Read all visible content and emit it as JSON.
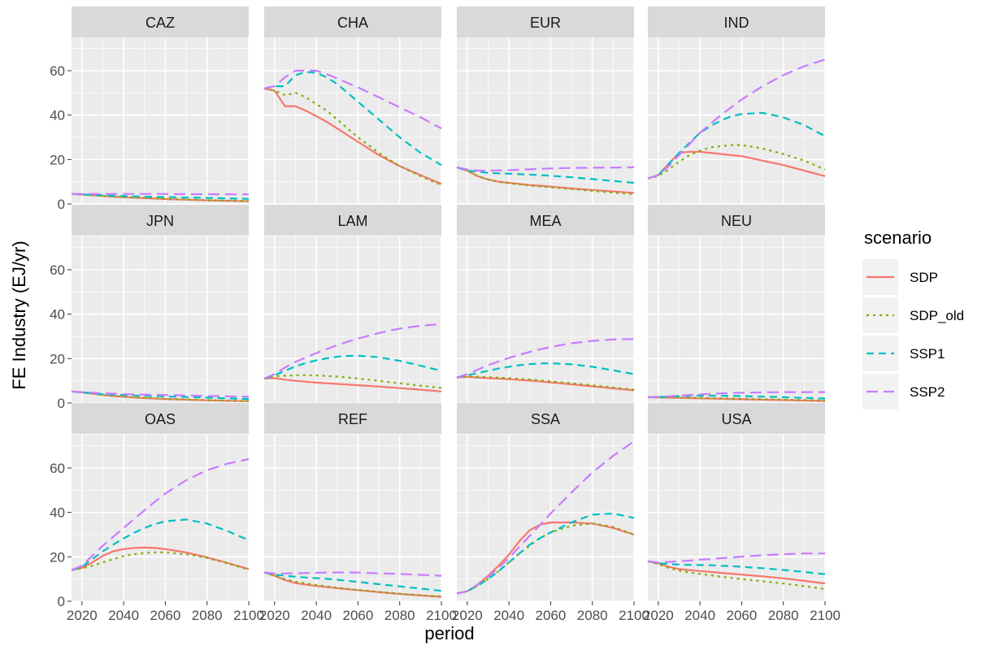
{
  "chart_data": {
    "type": "line",
    "xlabel": "period",
    "ylabel": "FE Industry (EJ/yr)",
    "xlim": [
      2015,
      2100
    ],
    "ylim": [
      0,
      75
    ],
    "x_ticks": [
      2020,
      2040,
      2060,
      2080,
      2100
    ],
    "y_ticks": [
      0,
      20,
      40,
      60
    ],
    "grid": true,
    "legend_title": "scenario",
    "legend_position": "right",
    "colors": {
      "SDP": "#F8766D",
      "SDP_old": "#7CAE00",
      "SSP1": "#00BFC4",
      "SSP2": "#C77CFF"
    },
    "scenarios": [
      {
        "name": "SDP",
        "color": "#F8766D",
        "dash": "none"
      },
      {
        "name": "SDP_old",
        "color": "#7CAE00",
        "dash": "3,5"
      },
      {
        "name": "SSP1",
        "color": "#00BFC4",
        "dash": "9,6"
      },
      {
        "name": "SSP2",
        "color": "#C77CFF",
        "dash": "14,7"
      }
    ],
    "x": [
      2015,
      2020,
      2025,
      2030,
      2035,
      2040,
      2045,
      2050,
      2055,
      2060,
      2070,
      2080,
      2090,
      2100
    ],
    "panels": [
      {
        "region": "CAZ",
        "series": {
          "SDP": [
            4.5,
            4.2,
            3.9,
            3.6,
            3.3,
            3.0,
            2.8,
            2.6,
            2.4,
            2.2,
            1.9,
            1.6,
            1.4,
            1.2
          ],
          "SDP_old": [
            4.5,
            4.2,
            3.9,
            3.6,
            3.4,
            3.1,
            2.9,
            2.7,
            2.5,
            2.3,
            2.0,
            1.7,
            1.5,
            1.3
          ],
          "SSP1": [
            4.5,
            4.3,
            4.1,
            3.9,
            3.7,
            3.5,
            3.4,
            3.3,
            3.2,
            3.1,
            2.9,
            2.7,
            2.5,
            2.3
          ],
          "SSP2": [
            4.5,
            4.5,
            4.5,
            4.5,
            4.5,
            4.5,
            4.5,
            4.5,
            4.5,
            4.5,
            4.4,
            4.4,
            4.3,
            4.3
          ]
        }
      },
      {
        "region": "CHA",
        "series": {
          "SDP": [
            52,
            51,
            44,
            44,
            42,
            39.5,
            37,
            34,
            31,
            28,
            22,
            17,
            13,
            9
          ],
          "SDP_old": [
            52,
            51,
            49,
            50,
            48,
            45,
            42,
            38,
            34,
            30,
            23,
            17,
            12.5,
            8.5
          ],
          "SSP1": [
            52,
            53,
            53,
            58,
            59.5,
            59,
            57,
            54,
            50,
            46,
            38,
            30,
            23,
            17.5
          ],
          "SSP2": [
            52,
            53,
            57,
            60,
            60,
            60,
            58.5,
            56.5,
            54.5,
            52.5,
            48,
            43.5,
            39,
            34
          ]
        }
      },
      {
        "region": "EUR",
        "series": {
          "SDP": [
            16.5,
            15,
            12.5,
            11,
            10,
            9.5,
            9,
            8.5,
            8.2,
            7.8,
            7,
            6.3,
            5.6,
            5
          ],
          "SDP_old": [
            16.5,
            15,
            12.5,
            11,
            10,
            9.3,
            8.8,
            8.3,
            7.9,
            7.5,
            6.7,
            5.9,
            5.1,
            4.4
          ],
          "SSP1": [
            16.5,
            15,
            14.5,
            14,
            13.8,
            13.6,
            13.4,
            13.2,
            13,
            12.7,
            12,
            11.2,
            10.3,
            9.5
          ],
          "SSP2": [
            16.5,
            15.5,
            15,
            15,
            15.1,
            15.2,
            15.4,
            15.6,
            15.8,
            16,
            16.2,
            16.3,
            16.4,
            16.5
          ]
        }
      },
      {
        "region": "IND",
        "series": {
          "SDP": [
            11.5,
            13,
            18,
            23,
            23.5,
            23.5,
            23,
            22.5,
            22,
            21.5,
            19.5,
            17.5,
            15,
            12.5
          ],
          "SDP_old": [
            11.5,
            12.5,
            15.5,
            19,
            22,
            24,
            25.5,
            26,
            26.5,
            26.5,
            25,
            22.5,
            19.5,
            15.5
          ],
          "SSP1": [
            11.5,
            13,
            18,
            23,
            27.5,
            32,
            35,
            37.5,
            39.5,
            40.5,
            41,
            39,
            35.5,
            30.5
          ],
          "SSP2": [
            11.5,
            13,
            17,
            22,
            27,
            32,
            36,
            40,
            43.5,
            47,
            53,
            58,
            62,
            65
          ]
        }
      },
      {
        "region": "JPN",
        "series": {
          "SDP": [
            5.2,
            4.8,
            4.2,
            3.6,
            3.2,
            2.8,
            2.5,
            2.2,
            2.0,
            1.8,
            1.5,
            1.2,
            1.0,
            0.8
          ],
          "SDP_old": [
            5.2,
            4.8,
            4.2,
            3.6,
            3.2,
            2.8,
            2.5,
            2.3,
            2.1,
            1.9,
            1.6,
            1.3,
            1.1,
            0.9
          ],
          "SSP1": [
            5.2,
            4.8,
            4.4,
            4.0,
            3.8,
            3.6,
            3.4,
            3.2,
            3.1,
            3.0,
            2.7,
            2.4,
            2.1,
            1.8
          ],
          "SSP2": [
            5.2,
            4.9,
            4.6,
            4.4,
            4.2,
            4.0,
            3.9,
            3.8,
            3.7,
            3.6,
            3.4,
            3.2,
            3.0,
            2.8
          ]
        }
      },
      {
        "region": "LAM",
        "series": {
          "SDP": [
            11,
            11.2,
            10.5,
            10,
            9.6,
            9.2,
            8.9,
            8.6,
            8.3,
            8,
            7.4,
            6.7,
            6,
            5.2
          ],
          "SDP_old": [
            11,
            12,
            12.3,
            12.5,
            12.5,
            12.4,
            12.2,
            11.9,
            11.5,
            11,
            10,
            8.9,
            7.8,
            6.8
          ],
          "SSP1": [
            11,
            12.5,
            14.5,
            16.5,
            18,
            19.2,
            20.1,
            20.8,
            21.2,
            21.3,
            20.6,
            19,
            16.8,
            14.5
          ],
          "SSP2": [
            11,
            13,
            16,
            18.5,
            20.5,
            22.5,
            24.3,
            26,
            27.6,
            29,
            31.5,
            33.5,
            34.8,
            35.5
          ]
        }
      },
      {
        "region": "MEA",
        "series": {
          "SDP": [
            11.5,
            11.8,
            11.5,
            11.2,
            11,
            10.7,
            10.4,
            10.1,
            9.7,
            9.3,
            8.4,
            7.5,
            6.6,
            5.7
          ],
          "SDP_old": [
            11.5,
            12,
            11.8,
            11.6,
            11.4,
            11.2,
            10.9,
            10.6,
            10.2,
            9.8,
            8.9,
            8,
            7,
            6
          ],
          "SSP1": [
            11.5,
            12.5,
            13.5,
            14.5,
            15.5,
            16.3,
            17,
            17.5,
            17.8,
            17.9,
            17.4,
            16.3,
            14.7,
            13
          ],
          "SSP2": [
            11.5,
            13,
            15,
            17,
            18.7,
            20.3,
            21.7,
            23,
            24.2,
            25.2,
            26.9,
            28,
            28.6,
            28.8
          ]
        }
      },
      {
        "region": "NEU",
        "series": {
          "SDP": [
            2.6,
            2.5,
            2.4,
            2.3,
            2.2,
            2.1,
            2.0,
            1.9,
            1.8,
            1.7,
            1.5,
            1.3,
            1.1,
            0.9
          ],
          "SDP_old": [
            2.6,
            2.5,
            2.5,
            2.4,
            2.4,
            2.3,
            2.2,
            2.1,
            2.0,
            1.9,
            1.7,
            1.5,
            1.3,
            1.1
          ],
          "SSP1": [
            2.6,
            2.7,
            2.9,
            3.1,
            3.2,
            3.3,
            3.3,
            3.3,
            3.2,
            3.1,
            2.9,
            2.6,
            2.3,
            2.0
          ],
          "SSP2": [
            2.6,
            2.8,
            3.0,
            3.3,
            3.6,
            3.9,
            4.1,
            4.3,
            4.5,
            4.6,
            4.8,
            4.9,
            4.9,
            4.9
          ]
        }
      },
      {
        "region": "OAS",
        "series": {
          "SDP": [
            14,
            15,
            17.5,
            20.5,
            22.5,
            23.5,
            24,
            24.2,
            24,
            23.5,
            22,
            19.8,
            17.2,
            14.5
          ],
          "SDP_old": [
            14,
            14.8,
            16,
            17.5,
            19,
            20.3,
            21.2,
            21.8,
            22,
            22,
            21.2,
            19.5,
            17,
            14.2
          ],
          "SSP1": [
            14,
            15.5,
            19,
            22.5,
            25.5,
            28.3,
            30.8,
            33,
            34.8,
            36,
            36.8,
            35,
            31.5,
            27.5
          ],
          "SSP2": [
            14,
            16,
            20.5,
            25,
            29,
            33,
            37,
            41,
            44.8,
            48.5,
            54.5,
            59,
            62,
            64
          ]
        }
      },
      {
        "region": "REF",
        "series": {
          "SDP": [
            13,
            11.5,
            9.5,
            8.2,
            7.5,
            6.9,
            6.4,
            5.9,
            5.4,
            5,
            4.1,
            3.3,
            2.6,
            2
          ],
          "SDP_old": [
            13,
            11.5,
            10,
            8.8,
            8,
            7.3,
            6.7,
            6.1,
            5.6,
            5.1,
            4.2,
            3.4,
            2.7,
            2.1
          ],
          "SSP1": [
            13,
            12,
            11.5,
            11,
            10.7,
            10.4,
            10.1,
            9.7,
            9.2,
            8.7,
            7.7,
            6.7,
            5.7,
            4.7
          ],
          "SSP2": [
            13,
            12.5,
            12.5,
            12.6,
            12.7,
            12.8,
            12.9,
            13,
            13,
            12.9,
            12.6,
            12.3,
            11.9,
            11.5
          ]
        }
      },
      {
        "region": "SSA",
        "series": {
          "SDP": [
            3.5,
            4.5,
            7.5,
            11.5,
            16,
            21,
            27,
            32,
            34.5,
            35.5,
            35.5,
            35,
            33,
            30
          ],
          "SDP_old": [
            3.5,
            4.5,
            7,
            10,
            13.5,
            17.5,
            21.5,
            25,
            28.5,
            31,
            34,
            35,
            33.5,
            30
          ],
          "SSP1": [
            3.5,
            4.5,
            7,
            10,
            13.5,
            17.5,
            21.5,
            25.5,
            28.5,
            31,
            35.5,
            39,
            39.5,
            37.5
          ],
          "SSP2": [
            3.5,
            4.5,
            7.5,
            11,
            15,
            19.5,
            24.5,
            29.5,
            34.5,
            39.5,
            49,
            58,
            65.5,
            72
          ]
        }
      },
      {
        "region": "USA",
        "series": {
          "SDP": [
            18,
            17,
            15.5,
            14.5,
            14,
            13.6,
            13.2,
            12.8,
            12.4,
            12,
            11.2,
            10.3,
            9.2,
            8
          ],
          "SDP_old": [
            18,
            16.8,
            15,
            13.8,
            13,
            12.3,
            11.7,
            11.1,
            10.5,
            10,
            9,
            8,
            6.8,
            5.5
          ],
          "SSP1": [
            18,
            17.2,
            16.8,
            16.5,
            16.4,
            16.3,
            16.2,
            16,
            15.8,
            15.5,
            14.9,
            14.1,
            13.2,
            12.2
          ],
          "SSP2": [
            18,
            17.5,
            17.7,
            18,
            18.3,
            18.7,
            19,
            19.4,
            19.7,
            20.1,
            20.7,
            21.2,
            21.5,
            21.5
          ]
        }
      }
    ]
  }
}
